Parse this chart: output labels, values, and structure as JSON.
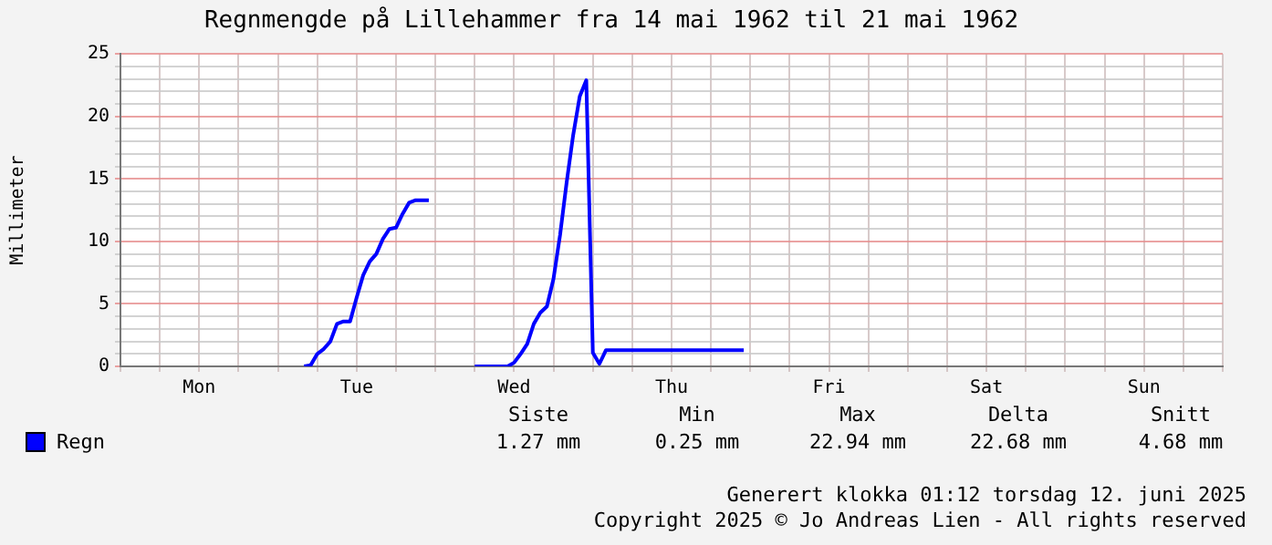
{
  "chart_data": {
    "type": "line",
    "title": "Regnmengde på Lillehammer fra 14 mai 1962 til 21 mai 1962",
    "ylabel": "Millimeter",
    "categories": [
      null,
      null,
      null,
      null,
      null,
      null,
      null,
      null,
      null,
      null,
      null,
      null,
      "Mon",
      null,
      null,
      null,
      null,
      null,
      null,
      null,
      null,
      null,
      null,
      null,
      null,
      null,
      null,
      null,
      null,
      null,
      null,
      null,
      null,
      null,
      null,
      null,
      "Tue",
      null,
      null,
      null,
      null,
      null,
      null,
      null,
      null,
      null,
      null,
      null,
      null,
      null,
      null,
      null,
      null,
      null,
      null,
      null,
      null,
      null,
      null,
      null,
      "Wed",
      null,
      null,
      null,
      null,
      null,
      null,
      null,
      null,
      null,
      null,
      null,
      null,
      null,
      null,
      null,
      null,
      null,
      null,
      null,
      null,
      null,
      null,
      null,
      "Thu",
      null,
      null,
      null,
      null,
      null,
      null,
      null,
      null,
      null,
      null,
      null,
      null,
      null,
      null,
      null,
      null,
      null,
      null,
      null,
      null,
      null,
      null,
      null,
      "Fri",
      null,
      null,
      null,
      null,
      null,
      null,
      null,
      null,
      null,
      null,
      null,
      null,
      null,
      null,
      null,
      null,
      null,
      null,
      null,
      null,
      null,
      null,
      null,
      "Sat",
      null,
      null,
      null,
      null,
      null,
      null,
      null,
      null,
      null,
      null,
      null,
      null,
      null,
      null,
      null,
      null,
      null,
      null,
      null,
      null,
      null,
      null,
      null,
      "Sun",
      null,
      null,
      null,
      null,
      null,
      null,
      null,
      null,
      null,
      null,
      null,
      null
    ],
    "series": [
      {
        "name": "Regn",
        "color": "#0000ff",
        "values": [
          null,
          null,
          null,
          null,
          null,
          null,
          null,
          null,
          null,
          null,
          null,
          null,
          null,
          null,
          null,
          null,
          null,
          null,
          null,
          null,
          null,
          null,
          null,
          null,
          null,
          null,
          null,
          null,
          0,
          0.1,
          1.0,
          1.4,
          2.0,
          3.4,
          3.6,
          3.6,
          5.5,
          7.3,
          8.4,
          9.0,
          10.2,
          11.0,
          11.1,
          12.2,
          13.1,
          13.3,
          13.3,
          13.3,
          null,
          null,
          null,
          null,
          null,
          null,
          0,
          0,
          0,
          0,
          0,
          0,
          0.3,
          1.0,
          1.8,
          3.4,
          4.3,
          4.8,
          7.0,
          10.5,
          14.7,
          18.5,
          21.6,
          22.9,
          1.1,
          0.2,
          1.3,
          1.3,
          1.3,
          1.3,
          1.3,
          1.3,
          1.3,
          1.3,
          1.3,
          1.3,
          1.3,
          1.3,
          1.3,
          1.3,
          1.3,
          1.3,
          1.3,
          1.3,
          1.3,
          1.3,
          1.3,
          1.3,
          null,
          null,
          null,
          null,
          null,
          null,
          null,
          null,
          null,
          null,
          null,
          null,
          null,
          null,
          null,
          null,
          null,
          null,
          null,
          null,
          null,
          null,
          null,
          null,
          null,
          null,
          null,
          null,
          null,
          null,
          null,
          null,
          null,
          null,
          null,
          null,
          null,
          null,
          null,
          null,
          null,
          null,
          null,
          null,
          null,
          null,
          null,
          null,
          null,
          null,
          null,
          null,
          null,
          null,
          null,
          null,
          null,
          null,
          null,
          null,
          null,
          null,
          null,
          null,
          null,
          null,
          null,
          null,
          null,
          null,
          null,
          null,
          null
        ]
      }
    ],
    "ylim": [
      0,
      25
    ],
    "yticks": [
      0,
      {
        "value": 1,
        "label": null
      },
      {
        "value": 2,
        "label": null
      },
      {
        "value": 3,
        "label": null
      },
      {
        "value": 4,
        "label": null
      },
      5,
      {
        "value": 6,
        "label": null
      },
      {
        "value": 7,
        "label": null
      },
      {
        "value": 8,
        "label": null
      },
      {
        "value": 9,
        "label": null
      },
      10,
      {
        "value": 11,
        "label": null
      },
      {
        "value": 12,
        "label": null
      },
      {
        "value": 13,
        "label": null
      },
      {
        "value": 14,
        "label": null
      },
      15,
      {
        "value": 16,
        "label": null
      },
      {
        "value": 17,
        "label": null
      },
      {
        "value": 18,
        "label": null
      },
      {
        "value": 19,
        "label": null
      },
      20,
      {
        "value": 21,
        "label": null
      },
      {
        "value": 22,
        "label": null
      },
      {
        "value": 23,
        "label": null
      },
      {
        "value": 24,
        "label": null
      },
      25
    ],
    "grid": true,
    "legend": "bottom",
    "marker": "none",
    "line_style": "solid",
    "annotations": [
      "Siste",
      "Min",
      "Max",
      "Delta",
      "Snitt",
      "1.27 mm",
      "0.25 mm",
      "22.94 mm",
      "22.68 mm",
      "4.68 mm",
      "Generert klokka 01:12 torsdag 12. juni 2025",
      "Copyright 2025 © Jo Andreas Lien - All rights reserved"
    ]
  }
}
